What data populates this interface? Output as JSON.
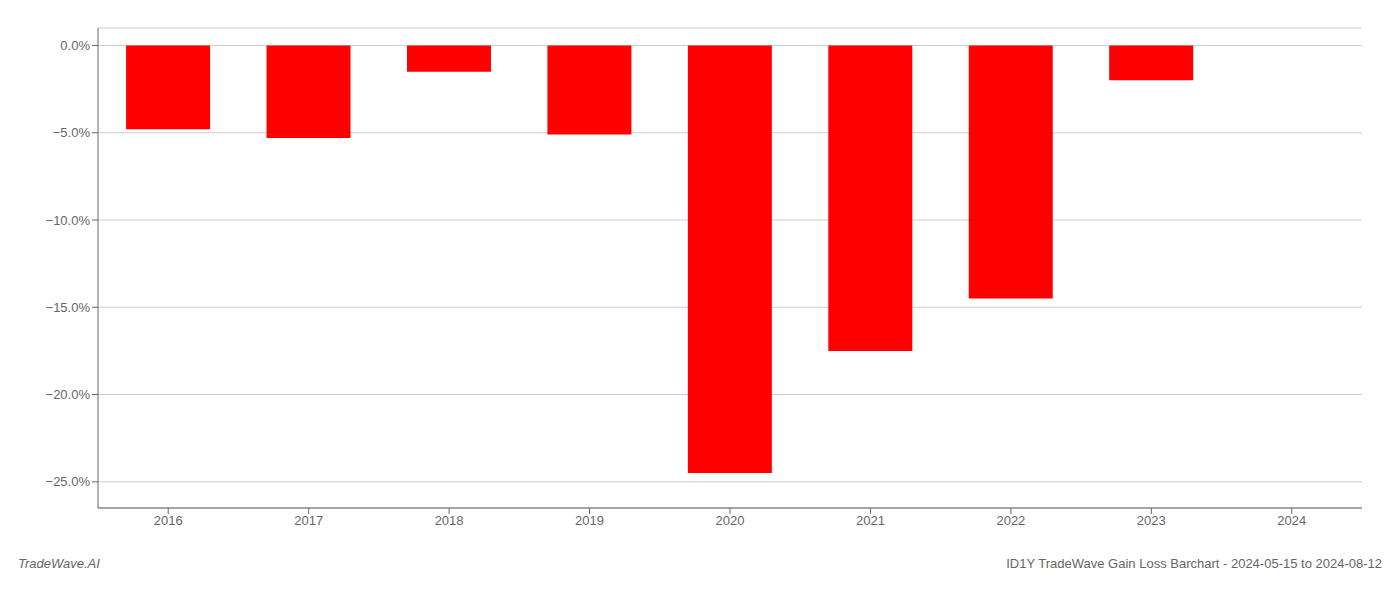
{
  "chart_data": {
    "type": "bar",
    "categories": [
      "2016",
      "2017",
      "2018",
      "2019",
      "2020",
      "2021",
      "2022",
      "2023",
      "2024"
    ],
    "values": [
      -4.8,
      -5.3,
      -1.5,
      -5.1,
      -24.5,
      -17.5,
      -14.5,
      -2.0,
      0.0
    ],
    "color": "#ff0000",
    "ylim": [
      -26.5,
      1.0
    ],
    "yticks": [
      {
        "value": 0.0,
        "label": "0.0%"
      },
      {
        "value": -5.0,
        "label": "−5.0%"
      },
      {
        "value": -10.0,
        "label": "−10.0%"
      },
      {
        "value": -15.0,
        "label": "−15.0%"
      },
      {
        "value": -20.0,
        "label": "−20.0%"
      },
      {
        "value": -25.0,
        "label": "−25.0%"
      }
    ],
    "grid": true,
    "annotations": [
      "TradeWave.AI",
      "ID1Y TradeWave Gain Loss Barchart - 2024-05-15 to 2024-08-12"
    ]
  }
}
